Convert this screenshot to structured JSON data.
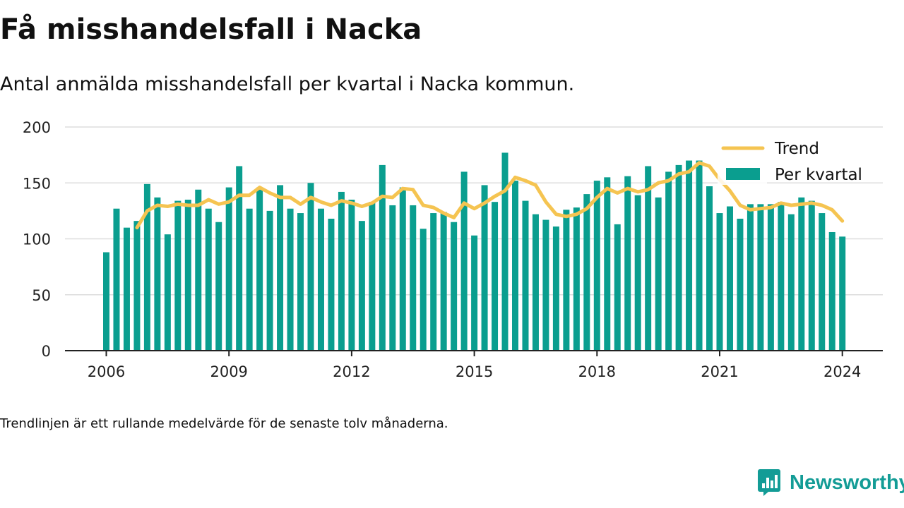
{
  "title": "Få misshandelsfall i Nacka",
  "subtitle": "Antal anmälda misshandelsfall per kvartal i Nacka kommun.",
  "footnote": "Trendlinjen är ett rullande medelvärde för de senaste tolv månaderna.",
  "brand": {
    "name": "Newsworthy",
    "color": "#139c96"
  },
  "chart_data": {
    "type": "bar",
    "title": "Få misshandelsfall i Nacka",
    "subtitle": "Antal anmälda misshandelsfall per kvartal i Nacka kommun.",
    "xlabel": "",
    "ylabel": "",
    "ylim": [
      0,
      200
    ],
    "y_ticks": [
      0,
      50,
      100,
      150,
      200
    ],
    "x_ticks": [
      "2006",
      "2009",
      "2012",
      "2015",
      "2018",
      "2021",
      "2024"
    ],
    "grid": true,
    "legend_position": "top-right",
    "colors": {
      "bars": "#0a9e8f",
      "trend": "#f5c451",
      "grid": "#dddddd",
      "axis": "#222222"
    },
    "categories": [
      "2006 Q1",
      "2006 Q2",
      "2006 Q3",
      "2006 Q4",
      "2007 Q1",
      "2007 Q2",
      "2007 Q3",
      "2007 Q4",
      "2008 Q1",
      "2008 Q2",
      "2008 Q3",
      "2008 Q4",
      "2009 Q1",
      "2009 Q2",
      "2009 Q3",
      "2009 Q4",
      "2010 Q1",
      "2010 Q2",
      "2010 Q3",
      "2010 Q4",
      "2011 Q1",
      "2011 Q2",
      "2011 Q3",
      "2011 Q4",
      "2012 Q1",
      "2012 Q2",
      "2012 Q3",
      "2012 Q4",
      "2013 Q1",
      "2013 Q2",
      "2013 Q3",
      "2013 Q4",
      "2014 Q1",
      "2014 Q2",
      "2014 Q3",
      "2014 Q4",
      "2015 Q1",
      "2015 Q2",
      "2015 Q3",
      "2015 Q4",
      "2016 Q1",
      "2016 Q2",
      "2016 Q3",
      "2016 Q4",
      "2017 Q1",
      "2017 Q2",
      "2017 Q3",
      "2017 Q4",
      "2018 Q1",
      "2018 Q2",
      "2018 Q3",
      "2018 Q4",
      "2019 Q1",
      "2019 Q2",
      "2019 Q3",
      "2019 Q4",
      "2020 Q1",
      "2020 Q2",
      "2020 Q3",
      "2020 Q4",
      "2021 Q1",
      "2021 Q2",
      "2021 Q3",
      "2021 Q4",
      "2022 Q1",
      "2022 Q2",
      "2022 Q3",
      "2022 Q4",
      "2023 Q1",
      "2023 Q2",
      "2023 Q3",
      "2023 Q4",
      "2024 Q1"
    ],
    "series": [
      {
        "name": "Per kvartal",
        "type": "bar",
        "values": [
          88,
          127,
          110,
          116,
          149,
          137,
          104,
          134,
          135,
          144,
          127,
          115,
          146,
          165,
          127,
          146,
          125,
          148,
          127,
          123,
          150,
          127,
          118,
          142,
          135,
          116,
          133,
          166,
          130,
          146,
          130,
          109,
          123,
          124,
          115,
          160,
          103,
          148,
          133,
          177,
          152,
          134,
          122,
          117,
          111,
          126,
          128,
          140,
          152,
          155,
          113,
          156,
          139,
          165,
          137,
          160,
          166,
          170,
          170,
          147,
          123,
          129,
          118,
          131,
          131,
          131,
          133,
          122,
          137,
          134,
          123,
          106,
          102
        ]
      },
      {
        "name": "Trend",
        "type": "line",
        "values": [
          null,
          null,
          null,
          110,
          125,
          130,
          129,
          131,
          130,
          130,
          135,
          131,
          133,
          139,
          139,
          146,
          141,
          137,
          137,
          131,
          137,
          133,
          130,
          134,
          132,
          129,
          132,
          138,
          137,
          145,
          144,
          130,
          128,
          123,
          119,
          132,
          127,
          132,
          138,
          143,
          155,
          152,
          148,
          133,
          122,
          120,
          122,
          127,
          137,
          145,
          141,
          145,
          142,
          144,
          150,
          152,
          158,
          160,
          168,
          165,
          153,
          143,
          130,
          126,
          127,
          128,
          132,
          130,
          131,
          132,
          130,
          126,
          116
        ]
      }
    ]
  }
}
